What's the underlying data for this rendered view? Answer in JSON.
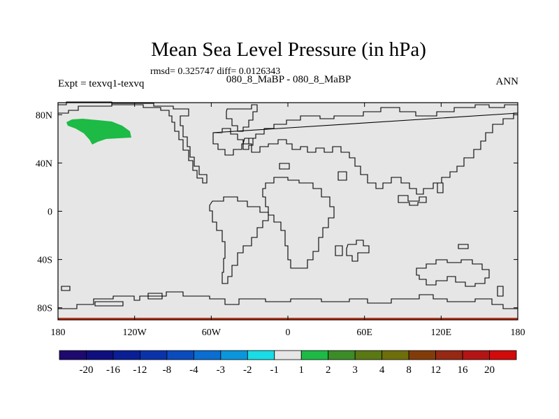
{
  "title": "Mean Sea Level Pressure (in hPa)",
  "stats_line": "rmsd= 0.325747 diff= 0.0126343",
  "subtitle": "080_8_MaBP - 080_8_MaBP",
  "expt_label": "Expt = texvq1-texvq",
  "season": "ANN",
  "map": {
    "projection": "cylindrical equidistant",
    "lon_range": [
      -180,
      180
    ],
    "lat_range": [
      -90,
      90
    ],
    "lat_ticks": [
      {
        "value": 80,
        "label": "80N"
      },
      {
        "value": 40,
        "label": "40N"
      },
      {
        "value": 0,
        "label": "0"
      },
      {
        "value": -40,
        "label": "40S"
      },
      {
        "value": -80,
        "label": "80S"
      }
    ],
    "lon_ticks": [
      {
        "value": -180,
        "label": "180"
      },
      {
        "value": -120,
        "label": "120W"
      },
      {
        "value": -60,
        "label": "60W"
      },
      {
        "value": 0,
        "label": "0"
      },
      {
        "value": 60,
        "label": "60E"
      },
      {
        "value": 120,
        "label": "120E"
      },
      {
        "value": 180,
        "label": "180"
      }
    ],
    "background_fill_color": "#e6e6e6",
    "anomaly_region": {
      "description": "positive anomaly over NE Pacific / Gulf of Alaska",
      "bin": "1 to 2",
      "color": "#1dba46"
    }
  },
  "colorbar": {
    "colors": [
      "#1e0a6e",
      "#0f0f80",
      "#0a1e96",
      "#0a32aa",
      "#0a4bbe",
      "#0a6ed2",
      "#0a96dc",
      "#19dce6",
      "#e6e6e6",
      "#1dba46",
      "#3c8c28",
      "#5a7814",
      "#6e6e0a",
      "#823c0a",
      "#962814",
      "#b41414",
      "#d20a0a"
    ],
    "labels": [
      "-20",
      "-16",
      "-12",
      "-8",
      "-4",
      "-3",
      "-2",
      "-1",
      "1",
      "2",
      "3",
      "4",
      "8",
      "12",
      "16",
      "20"
    ]
  }
}
